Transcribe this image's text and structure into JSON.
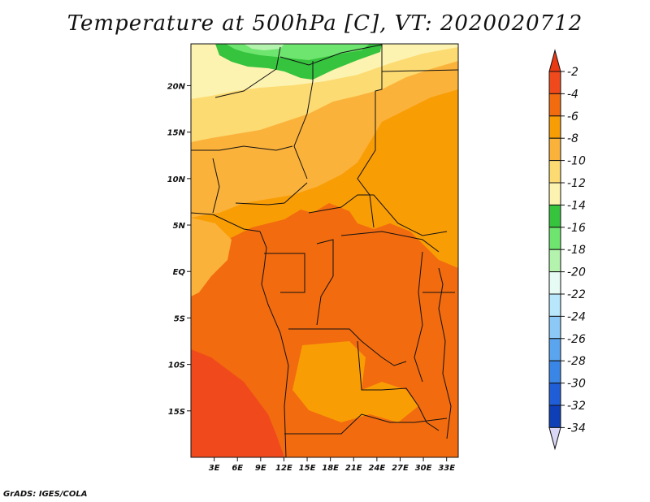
{
  "title": "Temperature at 500hPa [C], VT: 2020020712",
  "credit": "GrADS: IGES/COLA",
  "map": {
    "lon_range": [
      0,
      34.5
    ],
    "lat_range": [
      -20,
      24.5
    ],
    "lon_ticks": [
      {
        "value": 3,
        "label": "3E"
      },
      {
        "value": 6,
        "label": "6E"
      },
      {
        "value": 9,
        "label": "9E"
      },
      {
        "value": 12,
        "label": "12E"
      },
      {
        "value": 15,
        "label": "15E"
      },
      {
        "value": 18,
        "label": "18E"
      },
      {
        "value": 21,
        "label": "21E"
      },
      {
        "value": 24,
        "label": "24E"
      },
      {
        "value": 27,
        "label": "27E"
      },
      {
        "value": 30,
        "label": "30E"
      },
      {
        "value": 33,
        "label": "33E"
      }
    ],
    "lat_ticks": [
      {
        "value": 20,
        "label": "20N"
      },
      {
        "value": 15,
        "label": "15N"
      },
      {
        "value": 10,
        "label": "10N"
      },
      {
        "value": 5,
        "label": "5N"
      },
      {
        "value": 0,
        "label": "EQ"
      },
      {
        "value": -5,
        "label": "5S"
      },
      {
        "value": -10,
        "label": "10S"
      },
      {
        "value": -15,
        "label": "15S"
      }
    ]
  },
  "colorbar": {
    "labels": [
      "-2",
      "-4",
      "-6",
      "-8",
      "-10",
      "-12",
      "-14",
      "-16",
      "-18",
      "-20",
      "-22",
      "-24",
      "-26",
      "-28",
      "-30",
      "-32",
      "-34"
    ],
    "colors": [
      "#f04a1c",
      "#f26b0f",
      "#f99d05",
      "#fbb23a",
      "#fcdb72",
      "#fdf3b0",
      "#36c33e",
      "#6ee56e",
      "#b3f3ad",
      "#e6fbf4",
      "#b8e6fb",
      "#8cc9f6",
      "#5aa5ee",
      "#3a86e6",
      "#1f5ed7",
      "#0f3fb7",
      "#0b1a6e"
    ],
    "top_color": "#ea3a14",
    "bottom_color": "#d9d6f6"
  }
}
